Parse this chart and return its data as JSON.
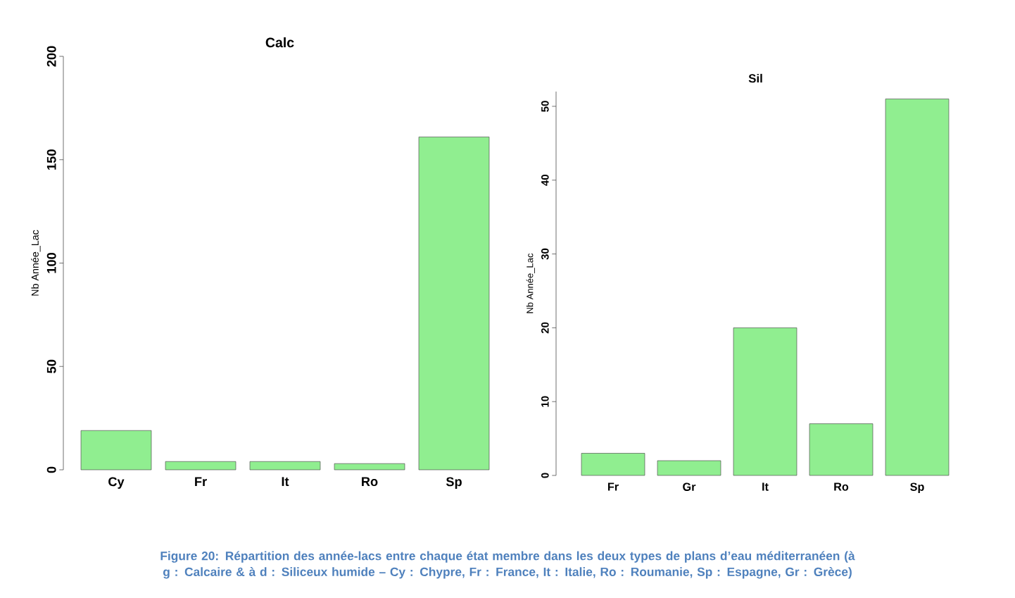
{
  "chart_data": [
    {
      "type": "bar",
      "title": "Calc",
      "ylabel": "Nb Année_Lac",
      "categories": [
        "Cy",
        "Fr",
        "It",
        "Ro",
        "Sp"
      ],
      "values": [
        19,
        4,
        4,
        3,
        161
      ],
      "color": "#90ee90",
      "ylim": [
        0,
        200
      ],
      "yticks": [
        0,
        50,
        100,
        150,
        200
      ],
      "annotations": [
        "Figure 20: Répartition des année-lacs entre chaque état membre dans les deux types de plans d’eau méditerranéen  (à g : Calcaire & à d : Siliceux humide –    Cy : Chypre, Fr : France, It : Italie, Ro : Roumanie, Sp : Espagne, Gr : Grèce)"
      ]
    },
    {
      "type": "bar",
      "title": "Sil",
      "ylabel": "Nb Année_Lac",
      "categories": [
        "Fr",
        "Gr",
        "It",
        "Ro",
        "Sp"
      ],
      "values": [
        3,
        2,
        20,
        7,
        51
      ],
      "color": "#90ee90",
      "ylim": [
        0,
        52
      ],
      "yticks": [
        0,
        10,
        20,
        30,
        40,
        50
      ]
    }
  ]
}
